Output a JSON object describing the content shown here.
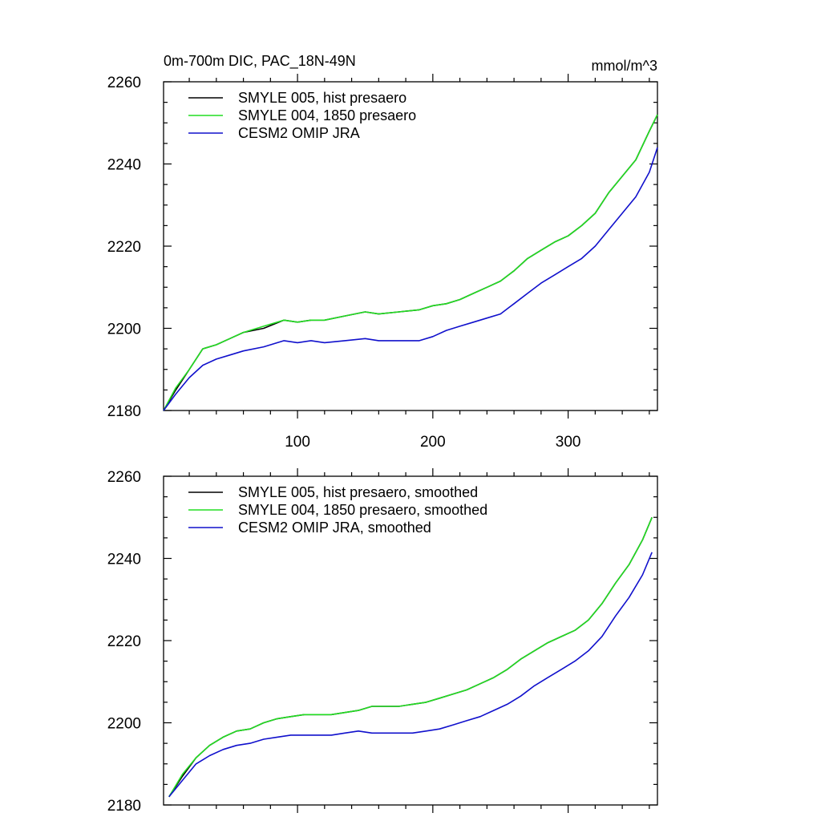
{
  "chart_data": [
    {
      "type": "line",
      "title": "0m-700m DIC, PAC_18N-49N",
      "units": "mmol/m^3",
      "xlim": [
        1,
        366
      ],
      "ylim": [
        2180,
        2260
      ],
      "xticks": [
        100,
        200,
        300
      ],
      "yticks": [
        2180,
        2200,
        2220,
        2240,
        2260
      ],
      "grid": false,
      "legend_position": "top-left",
      "series": [
        {
          "name": "SMYLE 005, hist presaero",
          "color": "#000000",
          "x": [
            1,
            10,
            20,
            30,
            40,
            50,
            60,
            75,
            90,
            100,
            110,
            120,
            135,
            150,
            160,
            175,
            190,
            200,
            210,
            220,
            230,
            240,
            250,
            260,
            270,
            280,
            290,
            300,
            310,
            320,
            330,
            340,
            350,
            360,
            366
          ],
          "y": [
            2180,
            2185,
            2190,
            2195,
            2196,
            2197.5,
            2199,
            2200,
            2202,
            2201.5,
            2202,
            2202,
            2203,
            2204,
            2203.5,
            2204,
            2204.5,
            2205.5,
            2206,
            2207,
            2208.5,
            2210,
            2211.5,
            2214,
            2217,
            2219,
            2221,
            2222.5,
            2225,
            2228,
            2233,
            2237,
            2241,
            2248,
            2252
          ]
        },
        {
          "name": "SMYLE 004, 1850 presaero",
          "color": "#22dd22",
          "x": [
            1,
            10,
            20,
            30,
            40,
            50,
            60,
            75,
            90,
            100,
            110,
            120,
            135,
            150,
            160,
            175,
            190,
            200,
            210,
            220,
            230,
            240,
            250,
            260,
            270,
            280,
            290,
            300,
            310,
            320,
            330,
            340,
            350,
            360,
            366
          ],
          "y": [
            2180,
            2185.5,
            2190,
            2195,
            2196,
            2197.5,
            2199,
            2200.5,
            2202,
            2201.5,
            2202,
            2202,
            2203,
            2204,
            2203.5,
            2204,
            2204.5,
            2205.5,
            2206,
            2207,
            2208.5,
            2210,
            2211.5,
            2214,
            2217,
            2219,
            2221,
            2222.5,
            2225,
            2228,
            2233,
            2237,
            2241,
            2248,
            2252
          ]
        },
        {
          "name": "CESM2 OMIP JRA",
          "color": "#1010cc",
          "x": [
            1,
            10,
            20,
            30,
            40,
            50,
            60,
            75,
            90,
            100,
            110,
            120,
            135,
            150,
            160,
            175,
            190,
            200,
            210,
            220,
            230,
            240,
            250,
            260,
            270,
            280,
            290,
            300,
            310,
            320,
            330,
            340,
            350,
            360,
            366
          ],
          "y": [
            2180,
            2184,
            2188,
            2191,
            2192.5,
            2193.5,
            2194.5,
            2195.5,
            2197,
            2196.5,
            2197,
            2196.5,
            2197,
            2197.5,
            2197,
            2197,
            2197,
            2198,
            2199.5,
            2200.5,
            2201.5,
            2202.5,
            2203.5,
            2206,
            2208.5,
            2211,
            2213,
            2215,
            2217,
            2220,
            2224,
            2228,
            2232,
            2238,
            2244
          ]
        }
      ]
    },
    {
      "type": "line",
      "xlim": [
        1,
        366
      ],
      "ylim": [
        2180,
        2260
      ],
      "xticks": [
        100,
        200,
        300
      ],
      "yticks": [
        2180,
        2200,
        2220,
        2240,
        2260
      ],
      "grid": false,
      "legend_position": "top-left",
      "series": [
        {
          "name": "SMYLE 005, hist presaero, smoothed",
          "color": "#000000",
          "x": [
            5,
            15,
            25,
            35,
            45,
            55,
            65,
            75,
            85,
            95,
            105,
            115,
            125,
            135,
            145,
            155,
            165,
            175,
            185,
            195,
            205,
            215,
            225,
            235,
            245,
            255,
            265,
            275,
            285,
            295,
            305,
            315,
            325,
            335,
            345,
            355,
            362
          ],
          "y": [
            2182,
            2187,
            2191.5,
            2194.5,
            2196.5,
            2198,
            2198.5,
            2200,
            2201,
            2201.5,
            2202,
            2202,
            2202,
            2202.5,
            2203,
            2204,
            2204,
            2204,
            2204.5,
            2205,
            2206,
            2207,
            2208,
            2209.5,
            2211,
            2213,
            2215.5,
            2217.5,
            2219.5,
            2221,
            2222.5,
            2225,
            2229,
            2234,
            2238.5,
            2244.5,
            2250
          ]
        },
        {
          "name": "SMYLE 004, 1850 presaero, smoothed",
          "color": "#22dd22",
          "x": [
            5,
            15,
            25,
            35,
            45,
            55,
            65,
            75,
            85,
            95,
            105,
            115,
            125,
            135,
            145,
            155,
            165,
            175,
            185,
            195,
            205,
            215,
            225,
            235,
            245,
            255,
            265,
            275,
            285,
            295,
            305,
            315,
            325,
            335,
            345,
            355,
            362
          ],
          "y": [
            2182,
            2187.5,
            2191.5,
            2194.5,
            2196.5,
            2198,
            2198.5,
            2200,
            2201,
            2201.5,
            2202,
            2202,
            2202,
            2202.5,
            2203,
            2204,
            2204,
            2204,
            2204.5,
            2205,
            2206,
            2207,
            2208,
            2209.5,
            2211,
            2213,
            2215.5,
            2217.5,
            2219.5,
            2221,
            2222.5,
            2225,
            2229,
            2234,
            2238.5,
            2244.5,
            2250
          ]
        },
        {
          "name": "CESM2 OMIP JRA, smoothed",
          "color": "#1010cc",
          "x": [
            5,
            15,
            25,
            35,
            45,
            55,
            65,
            75,
            85,
            95,
            105,
            115,
            125,
            135,
            145,
            155,
            165,
            175,
            185,
            195,
            205,
            215,
            225,
            235,
            245,
            255,
            265,
            275,
            285,
            295,
            305,
            315,
            325,
            335,
            345,
            355,
            362
          ],
          "y": [
            2182,
            2186,
            2190,
            2192,
            2193.5,
            2194.5,
            2195,
            2196,
            2196.5,
            2197,
            2197,
            2197,
            2197,
            2197.5,
            2198,
            2197.5,
            2197.5,
            2197.5,
            2197.5,
            2198,
            2198.5,
            2199.5,
            2200.5,
            2201.5,
            2203,
            2204.5,
            2206.5,
            2209,
            2211,
            2213,
            2215,
            2217.5,
            2221,
            2226,
            2230.5,
            2236,
            2241.5
          ]
        }
      ]
    }
  ]
}
